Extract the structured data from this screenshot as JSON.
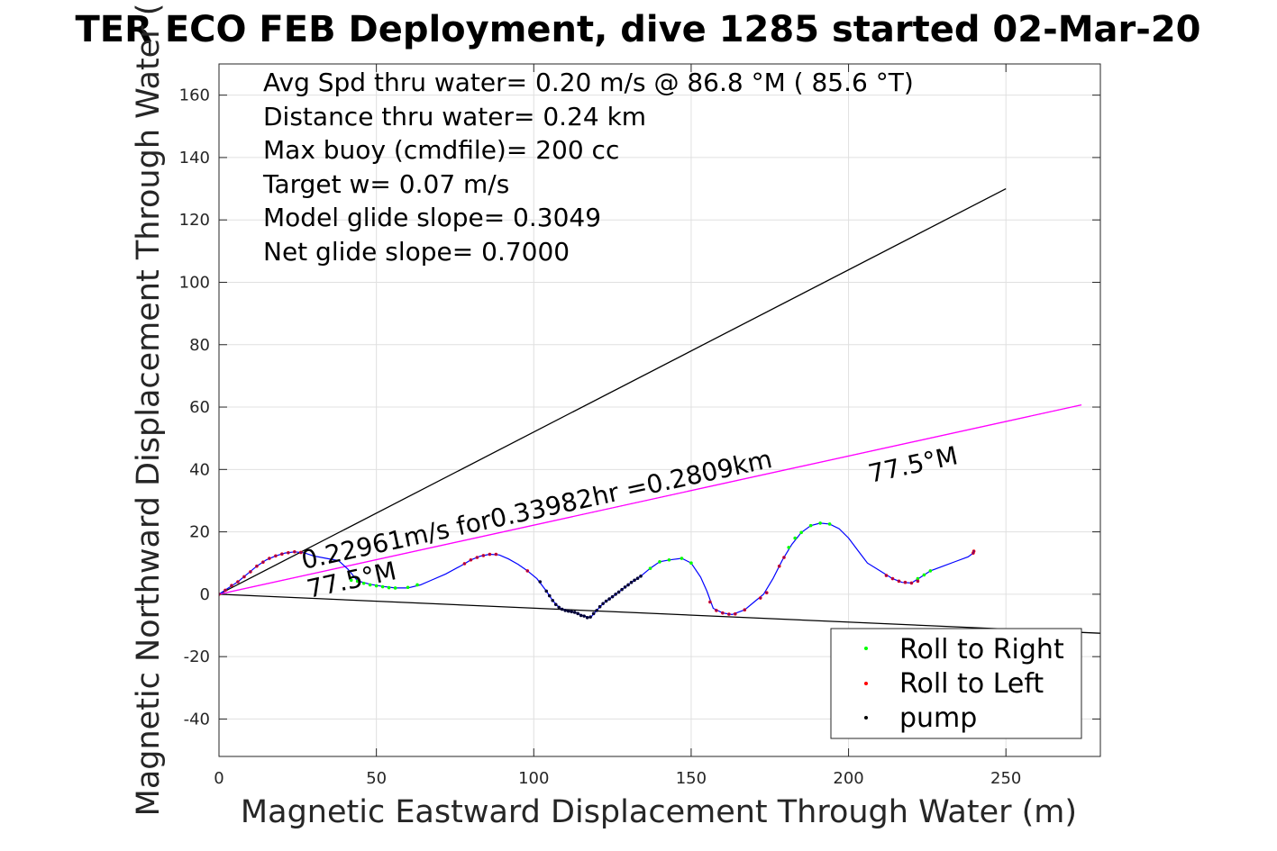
{
  "chart_data": {
    "type": "scatter",
    "title": "TER ECO FEB Deployment, dive 1285 started 02-Mar-20",
    "xlabel": "Magnetic Eastward Displacement Through Water (m)",
    "ylabel": "Magnetic Northward Displacement Through Water (",
    "xlim": [
      0,
      280
    ],
    "ylim": [
      -52,
      170
    ],
    "x_ticks": [
      0,
      50,
      100,
      150,
      200,
      250
    ],
    "y_ticks": [
      -40,
      -20,
      0,
      20,
      40,
      60,
      80,
      100,
      120,
      140,
      160
    ],
    "grid": true,
    "legend_placement": "bottom-right",
    "stats": [
      "Avg Spd thru water=  0.20 m/s @  86.8 °M ( 85.6 °T)",
      "Distance thru water=  0.24 km",
      "Max buoy (cmdfile)= 200 cc",
      "Target w= 0.07 m/s",
      "Model glide slope= 0.3049",
      "Net glide slope= 0.7000"
    ],
    "annotations": {
      "current": "0.22961m/s for0.33982hr =0.2809km",
      "heading_near": "77.5°M",
      "heading_far": "77.5°M"
    },
    "lines": {
      "upper_bound": [
        [
          0,
          0
        ],
        [
          250,
          130
        ]
      ],
      "lower_bound": [
        [
          0,
          0
        ],
        [
          280,
          -12.5
        ]
      ],
      "heading": [
        [
          0,
          0
        ],
        [
          274,
          60.7
        ]
      ]
    },
    "track": [
      [
        0,
        0
      ],
      [
        3,
        2
      ],
      [
        6,
        4
      ],
      [
        9,
        6.5
      ],
      [
        12,
        9
      ],
      [
        15,
        11
      ],
      [
        18,
        12.3
      ],
      [
        21,
        13.2
      ],
      [
        24,
        13.6
      ],
      [
        27,
        13.3
      ],
      [
        30,
        12.3
      ],
      [
        34,
        11.5
      ],
      [
        38,
        10.8
      ],
      [
        41,
        8
      ],
      [
        44,
        4.3
      ],
      [
        48,
        3.2
      ],
      [
        52,
        2.5
      ],
      [
        56,
        2
      ],
      [
        60,
        2
      ],
      [
        64,
        3
      ],
      [
        67,
        4.3
      ],
      [
        72,
        6.5
      ],
      [
        77,
        9.2
      ],
      [
        80,
        11
      ],
      [
        83,
        12.2
      ],
      [
        86,
        12.8
      ],
      [
        89,
        12.6
      ],
      [
        92,
        11.3
      ],
      [
        95,
        9.6
      ],
      [
        98,
        7.5
      ],
      [
        101,
        5
      ],
      [
        104,
        1
      ],
      [
        106,
        -2
      ],
      [
        108,
        -4.2
      ],
      [
        110,
        -5.2
      ],
      [
        113,
        -5.8
      ],
      [
        116,
        -7
      ],
      [
        118,
        -7.5
      ],
      [
        120,
        -5.2
      ],
      [
        122,
        -3
      ],
      [
        125,
        -0.8
      ],
      [
        128,
        1.5
      ],
      [
        131,
        3.8
      ],
      [
        134,
        5.8
      ],
      [
        137,
        8.3
      ],
      [
        140,
        10.4
      ],
      [
        143,
        11
      ],
      [
        147,
        11.5
      ],
      [
        150,
        10
      ],
      [
        153,
        5.5
      ],
      [
        155,
        1
      ],
      [
        157,
        -4.5
      ],
      [
        160,
        -6
      ],
      [
        163,
        -6.5
      ],
      [
        167,
        -5
      ],
      [
        170,
        -2.5
      ],
      [
        173,
        0
      ],
      [
        176,
        5
      ],
      [
        179,
        11
      ],
      [
        182,
        16
      ],
      [
        185,
        19.8
      ],
      [
        188,
        22
      ],
      [
        191,
        22.8
      ],
      [
        194,
        22.5
      ],
      [
        197,
        21
      ],
      [
        200,
        18
      ],
      [
        203,
        14
      ],
      [
        206,
        10
      ],
      [
        210,
        7.5
      ],
      [
        214,
        5
      ],
      [
        217,
        3.8
      ],
      [
        220,
        3.6
      ],
      [
        223,
        5.5
      ],
      [
        226,
        7.5
      ],
      [
        230,
        9
      ],
      [
        234,
        10.5
      ],
      [
        238,
        12
      ],
      [
        240,
        13.5
      ]
    ],
    "markers": {
      "right": [
        [
          42,
          4.5
        ],
        [
          44,
          4.2
        ],
        [
          46,
          3.5
        ],
        [
          48,
          3
        ],
        [
          50,
          2.7
        ],
        [
          52,
          2.4
        ],
        [
          54,
          2.1
        ],
        [
          56,
          2
        ],
        [
          60,
          2.2
        ],
        [
          63,
          3
        ],
        [
          137,
          8.3
        ],
        [
          140,
          10.4
        ],
        [
          143,
          11
        ],
        [
          147,
          11.5
        ],
        [
          150,
          10
        ],
        [
          181,
          15
        ],
        [
          183,
          18
        ],
        [
          185,
          19.8
        ],
        [
          188,
          22
        ],
        [
          191,
          22.8
        ],
        [
          194,
          22.5
        ],
        [
          222,
          5
        ],
        [
          224,
          6.2
        ],
        [
          226,
          7.5
        ]
      ],
      "left": [
        [
          0,
          0
        ],
        [
          2,
          1.3
        ],
        [
          4,
          2.8
        ],
        [
          6,
          4
        ],
        [
          8,
          5.6
        ],
        [
          10,
          7.2
        ],
        [
          12,
          9
        ],
        [
          14,
          10.3
        ],
        [
          16,
          11.5
        ],
        [
          18,
          12.3
        ],
        [
          20,
          12.9
        ],
        [
          22,
          13.3
        ],
        [
          24,
          13.6
        ],
        [
          26,
          13.4
        ],
        [
          78,
          9.8
        ],
        [
          80,
          11
        ],
        [
          82,
          11.8
        ],
        [
          84,
          12.4
        ],
        [
          86,
          12.8
        ],
        [
          88,
          12.8
        ],
        [
          98,
          7.5
        ],
        [
          156,
          -2.5
        ],
        [
          158,
          -5.2
        ],
        [
          160,
          -6
        ],
        [
          162,
          -6.4
        ],
        [
          164,
          -6.3
        ],
        [
          167,
          -5
        ],
        [
          172,
          -1.2
        ],
        [
          174,
          0.5
        ],
        [
          178,
          9
        ],
        [
          179.5,
          11.8
        ],
        [
          212,
          6
        ],
        [
          214,
          5
        ],
        [
          216,
          4.2
        ],
        [
          218,
          3.8
        ],
        [
          220,
          3.6
        ],
        [
          222,
          4.2
        ],
        [
          239.6,
          13.2
        ],
        [
          239.8,
          13.8
        ]
      ],
      "pump": [
        [
          102,
          4
        ],
        [
          104,
          1
        ],
        [
          105,
          -0.5
        ],
        [
          106,
          -2
        ],
        [
          107,
          -3.3
        ],
        [
          108,
          -4.2
        ],
        [
          109,
          -4.8
        ],
        [
          110,
          -5.2
        ],
        [
          111,
          -5.4
        ],
        [
          112,
          -5.6
        ],
        [
          113,
          -5.8
        ],
        [
          114,
          -6.2
        ],
        [
          115,
          -6.8
        ],
        [
          116,
          -7
        ],
        [
          117,
          -7.5
        ],
        [
          118,
          -7.3
        ],
        [
          119,
          -6.2
        ],
        [
          120,
          -5.2
        ],
        [
          121,
          -4
        ],
        [
          122,
          -3
        ],
        [
          123,
          -2.2
        ],
        [
          124,
          -1.5
        ],
        [
          125,
          -0.8
        ],
        [
          126,
          0
        ],
        [
          127,
          0.7
        ],
        [
          128,
          1.5
        ],
        [
          129,
          2.3
        ],
        [
          130,
          3
        ],
        [
          131,
          3.8
        ],
        [
          132,
          4.5
        ],
        [
          133,
          5.1
        ],
        [
          134,
          5.8
        ]
      ]
    },
    "legend": [
      {
        "label": "Roll to Right",
        "color": "#00ff00"
      },
      {
        "label": "Roll to Left",
        "color": "#ff0000"
      },
      {
        "label": "pump",
        "color": "#000000"
      }
    ],
    "colors": {
      "track": "#0000ff",
      "heading_line": "#ff00ff",
      "bound_lines": "#000000"
    }
  }
}
